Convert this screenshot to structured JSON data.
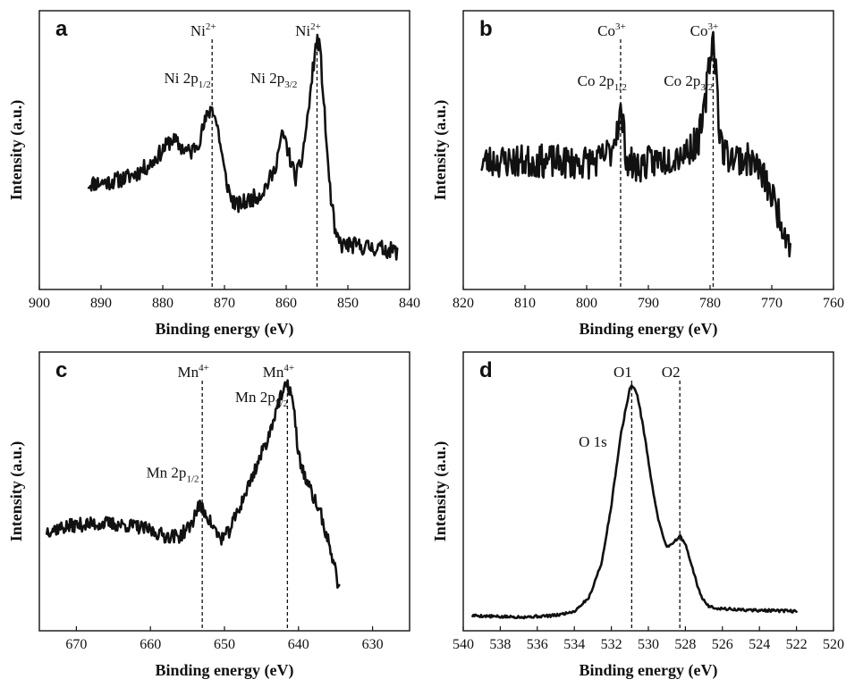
{
  "figure": {
    "background": "#ffffff",
    "line_color": "#111111"
  },
  "chart_data": [
    {
      "panel": "a",
      "type": "line",
      "xlabel": "Binding energy (eV)",
      "ylabel": "Intensity (a.u.)",
      "xlim": [
        900,
        840
      ],
      "ylim": [
        0,
        100
      ],
      "xticks": [
        900,
        890,
        880,
        870,
        860,
        850,
        840
      ],
      "noise": 3,
      "seed": 11,
      "peak_markers": [
        {
          "x": 872,
          "label": "Ni",
          "sup": "2+"
        },
        {
          "x": 855,
          "label": "Ni",
          "sup": "2+"
        }
      ],
      "annotations": [
        {
          "x": 876,
          "y": 74,
          "label": "Ni 2p",
          "sub": "1/2"
        },
        {
          "x": 862,
          "y": 74,
          "label": "Ni 2p",
          "sub": "3/2"
        }
      ],
      "series": [
        {
          "name": "Ni 2p",
          "x": [
            892,
            889,
            886,
            884,
            882,
            880,
            878.5,
            877,
            875.5,
            874,
            873,
            872,
            871,
            870,
            869,
            868,
            867,
            866,
            864,
            862,
            861,
            860.5,
            859.5,
            858.5,
            857.5,
            856.5,
            855.5,
            855,
            854.5,
            854,
            853,
            852,
            851,
            850,
            848,
            846,
            844,
            842
          ],
          "y": [
            38,
            38.5,
            40,
            42,
            45,
            50,
            54,
            51,
            49,
            54,
            61,
            66,
            57,
            42,
            33,
            30,
            31,
            32,
            34.5,
            42,
            52,
            56,
            48,
            40,
            46,
            62,
            82,
            90,
            86,
            70,
            38,
            19,
            16,
            16,
            15.5,
            15,
            14.5,
            13.5
          ]
        }
      ]
    },
    {
      "panel": "b",
      "type": "line",
      "xlabel": "Binding energy (eV)",
      "ylabel": "Intensity (a.u.)",
      "xlim": [
        820,
        760
      ],
      "ylim": [
        0,
        100
      ],
      "xticks": [
        820,
        810,
        800,
        790,
        780,
        770,
        760
      ],
      "noise": 6,
      "seed": 23,
      "peak_markers": [
        {
          "x": 794.5,
          "label": "Co",
          "sup": "3+"
        },
        {
          "x": 779.5,
          "label": "Co",
          "sup": "3+"
        }
      ],
      "annotations": [
        {
          "x": 797.5,
          "y": 73,
          "label": "Co 2p",
          "sub": "1/2"
        },
        {
          "x": 783.5,
          "y": 73,
          "label": "Co 2p",
          "sub": "3/2"
        }
      ],
      "series": [
        {
          "name": "Co 2p",
          "x": [
            817,
            812,
            807,
            802,
            798,
            796,
            795,
            794.5,
            794,
            793.5,
            792,
            790,
            787,
            784,
            782,
            781,
            780.2,
            779.5,
            779,
            778.5,
            778,
            777,
            775,
            773,
            771,
            769,
            767.5,
            767
          ],
          "y": [
            46,
            46,
            46,
            45.5,
            46,
            50,
            59,
            63,
            57,
            46,
            44,
            45.5,
            47,
            49.5,
            53,
            62,
            80,
            91,
            78,
            58,
            50,
            48,
            47,
            46,
            39,
            28,
            19,
            17
          ]
        }
      ]
    },
    {
      "panel": "c",
      "type": "line",
      "xlabel": "Binding energy (eV)",
      "ylabel": "Intensity (a.u.)",
      "xlim": [
        675,
        625
      ],
      "ylim": [
        0,
        100
      ],
      "xticks": [
        670,
        660,
        650,
        640,
        630
      ],
      "noise": 2.5,
      "seed": 37,
      "peak_markers": [
        {
          "x": 653,
          "label": "Mn",
          "sup": "4+"
        },
        {
          "x": 641.5,
          "label": "Mn",
          "sup": "4+"
        }
      ],
      "annotations": [
        {
          "x": 657,
          "y": 55,
          "label": "Mn 2p",
          "sub": "1/2"
        },
        {
          "x": 645,
          "y": 82,
          "label": "Mn 2p",
          "sub": "3/2"
        }
      ],
      "series": [
        {
          "name": "Mn 2p",
          "x": [
            674,
            670,
            666,
            662,
            660,
            658,
            656,
            654.5,
            653.5,
            652.5,
            651.5,
            650.5,
            649.5,
            648,
            646,
            644,
            643,
            642,
            641.5,
            641,
            640.5,
            640,
            639,
            638,
            637,
            636,
            635,
            634.5
          ],
          "y": [
            36,
            38,
            38.5,
            37.5,
            36,
            34,
            34,
            38,
            45,
            42,
            37,
            33,
            35,
            44,
            57,
            70,
            80,
            86,
            88,
            86,
            76,
            63,
            54,
            48,
            42,
            32,
            22,
            14
          ]
        }
      ]
    },
    {
      "panel": "d",
      "type": "line",
      "xlabel": "Binding energy (eV)",
      "ylabel": "Intensity (a.u.)",
      "xlim": [
        540,
        520
      ],
      "ylim": [
        0,
        100
      ],
      "xticks": [
        540,
        538,
        536,
        534,
        532,
        530,
        528,
        526,
        524,
        522,
        520
      ],
      "noise": 0.5,
      "seed": 5,
      "peak_markers": [
        {
          "x": 530.9,
          "label": "O1",
          "sup": ""
        },
        {
          "x": 528.3,
          "label": "O2",
          "sup": ""
        }
      ],
      "annotations": [
        {
          "x": 533,
          "y": 66,
          "label": "O 1s",
          "sub": ""
        }
      ],
      "series": [
        {
          "name": "O 1s",
          "x": [
            539.5,
            538,
            536.5,
            535,
            534,
            533.2,
            532.5,
            532,
            531.5,
            531,
            530.9,
            530.6,
            530.2,
            529.8,
            529.4,
            529,
            528.6,
            528.3,
            528,
            527.6,
            527.2,
            526.8,
            526.2,
            525,
            522
          ],
          "y": [
            5.5,
            5,
            5,
            5.5,
            7,
            12,
            25,
            45,
            70,
            87,
            88,
            85,
            70,
            52,
            38,
            30,
            32,
            34,
            31,
            22,
            13,
            9,
            8,
            7.5,
            7
          ]
        }
      ]
    }
  ]
}
